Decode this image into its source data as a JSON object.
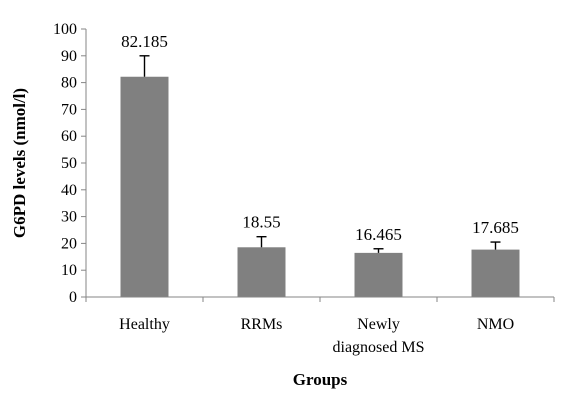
{
  "chart_data": {
    "type": "bar",
    "categories": [
      "Healthy",
      "RRMs",
      "Newly diagnosed MS",
      "NMO"
    ],
    "category_lines": [
      [
        "Healthy"
      ],
      [
        "RRMs"
      ],
      [
        "Newly",
        "diagnosed MS"
      ],
      [
        "NMO"
      ]
    ],
    "values": [
      82.185,
      18.55,
      16.465,
      17.685
    ],
    "data_labels": [
      "82.185",
      "18.55",
      "16.465",
      "17.685"
    ],
    "error_upper": [
      90,
      22.5,
      18,
      20.5
    ],
    "xlabel": "Groups",
    "ylabel": "G6PD levels (nmol/l)",
    "ylim": [
      0,
      100
    ],
    "yticks": [
      0,
      10,
      20,
      30,
      40,
      50,
      60,
      70,
      80,
      90,
      100
    ],
    "grid": false,
    "bar_color": "#808080",
    "axis_color": "#868686"
  }
}
